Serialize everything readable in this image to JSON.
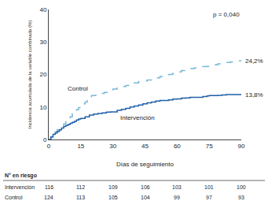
{
  "chart_data": {
    "type": "line",
    "xlabel": "Días de seguimiento",
    "ylabel": "Incidencia acumulada de la variable combinada (%)",
    "xlim": [
      0,
      90
    ],
    "ylim": [
      0,
      40
    ],
    "xticks": [
      0,
      15,
      30,
      45,
      60,
      75,
      90
    ],
    "yticks": [
      0,
      10,
      20,
      30,
      40
    ],
    "grid": false,
    "annotations": [
      "p = 0,040"
    ],
    "series": [
      {
        "name": "Control",
        "color": "#7ab8d9",
        "line_style": "dashed",
        "x": [
          0,
          1,
          2,
          3,
          4,
          5,
          6,
          7,
          8,
          9,
          10,
          11,
          12,
          13,
          14,
          15,
          16,
          17,
          18,
          19,
          20,
          22,
          24,
          26,
          28,
          30,
          32,
          34,
          36,
          38,
          40,
          42,
          44,
          46,
          48,
          50,
          52,
          54,
          56,
          58,
          60,
          62,
          64,
          66,
          68,
          70,
          72,
          74,
          75,
          77,
          79,
          81,
          83,
          85,
          87,
          89,
          90
        ],
        "values": [
          0,
          0.8,
          1.6,
          2.4,
          3.0,
          3.6,
          4.2,
          4.8,
          5.5,
          6.2,
          7.0,
          7.8,
          8.5,
          9.2,
          9.8,
          10.5,
          11.0,
          11.5,
          12.0,
          12.8,
          13.5,
          14.0,
          14.2,
          14.5,
          14.8,
          15.5,
          16.0,
          16.3,
          16.6,
          17.0,
          17.4,
          17.8,
          18.0,
          18.3,
          18.6,
          19.0,
          19.4,
          19.7,
          20.0,
          20.3,
          20.8,
          21.2,
          21.5,
          21.8,
          22.0,
          22.2,
          22.4,
          22.5,
          22.5,
          23.0,
          23.3,
          23.5,
          23.7,
          23.9,
          24.1,
          24.2,
          24.2
        ],
        "value_labels": [
          null,
          null,
          null,
          null,
          null,
          null,
          null,
          null,
          null,
          null,
          null,
          null,
          null,
          null,
          null,
          null,
          null,
          null,
          null,
          null,
          null,
          null,
          null,
          null,
          null,
          null,
          null,
          null,
          null,
          null,
          null,
          null,
          null,
          null,
          null,
          null,
          null,
          null,
          null,
          null,
          null,
          null,
          null,
          null,
          null,
          null,
          null,
          null,
          null,
          null,
          null,
          null,
          null,
          null,
          null,
          null,
          "24,2%"
        ]
      },
      {
        "name": "Intervención",
        "color": "#2060a8",
        "line_style": "solid",
        "x": [
          0,
          1,
          2,
          3,
          4,
          5,
          6,
          7,
          8,
          9,
          10,
          11,
          12,
          13,
          14,
          15,
          17,
          19,
          21,
          23,
          25,
          27,
          29,
          30,
          32,
          34,
          36,
          38,
          40,
          42,
          44,
          46,
          48,
          50,
          52,
          54,
          56,
          58,
          60,
          62,
          64,
          66,
          68,
          70,
          72,
          74,
          75,
          77,
          79,
          81,
          83,
          85,
          87,
          89,
          90
        ],
        "values": [
          0,
          0.8,
          1.6,
          2.0,
          2.5,
          3.0,
          3.5,
          4.0,
          4.3,
          4.6,
          5.0,
          5.3,
          5.6,
          6.0,
          6.3,
          6.5,
          7.0,
          7.5,
          7.8,
          8.0,
          8.2,
          8.4,
          8.5,
          8.5,
          9.0,
          9.3,
          9.6,
          10.0,
          10.3,
          10.6,
          11.0,
          11.3,
          11.5,
          11.8,
          12.0,
          12.0,
          12.2,
          12.4,
          12.5,
          12.7,
          12.8,
          13.0,
          13.0,
          13.0,
          13.2,
          13.4,
          13.5,
          13.5,
          13.6,
          13.7,
          13.8,
          13.8,
          13.8,
          13.8,
          13.8
        ],
        "value_labels": [
          null,
          null,
          null,
          null,
          null,
          null,
          null,
          null,
          null,
          null,
          null,
          null,
          null,
          null,
          null,
          null,
          null,
          null,
          null,
          null,
          null,
          null,
          null,
          null,
          null,
          null,
          null,
          null,
          null,
          null,
          null,
          null,
          null,
          null,
          null,
          null,
          null,
          null,
          null,
          null,
          null,
          null,
          null,
          null,
          null,
          null,
          null,
          null,
          null,
          null,
          null,
          null,
          null,
          null,
          "13,8%"
        ]
      }
    ],
    "at_risk": {
      "header": "N° en riesgo",
      "times": [
        0,
        15,
        30,
        45,
        60,
        75,
        90
      ],
      "rows": [
        {
          "name": "Intervención",
          "values": [
            116,
            112,
            109,
            106,
            103,
            101,
            100
          ]
        },
        {
          "name": "Control",
          "values": [
            124,
            113,
            105,
            104,
            99,
            97,
            93
          ]
        }
      ]
    }
  }
}
